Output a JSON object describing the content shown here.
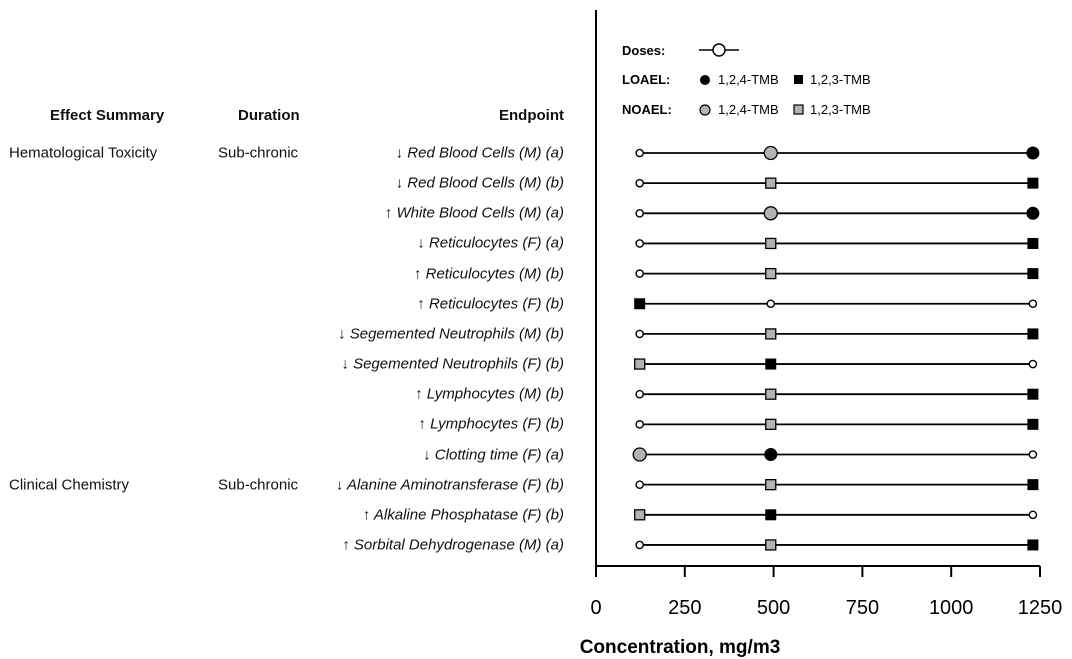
{
  "headers": {
    "effect_summary": "Effect Summary",
    "duration": "Duration",
    "endpoint": "Endpoint"
  },
  "groups": [
    {
      "effect": "Hematological Toxicity",
      "duration": "Sub-chronic",
      "row": 0
    },
    {
      "effect": "Clinical Chemistry",
      "duration": "Sub-chronic",
      "row": 11
    }
  ],
  "legend": {
    "doses_label": "Doses:",
    "loael_label": "LOAEL:",
    "noael_label": "NOAEL:",
    "tmb124": "1,2,4-TMB",
    "tmb123": "1,2,3-TMB"
  },
  "colors": {
    "loael": "#000000",
    "noael_fill": "#b3b3b3",
    "dose_fill": "#ffffff",
    "line": "#000000"
  },
  "chart_data": {
    "type": "scatter",
    "xlabel": "Concentration, mg/m3",
    "xlim": [
      0,
      1250
    ],
    "xticks": [
      0,
      250,
      500,
      750,
      1000,
      1250
    ],
    "xtick_labels": [
      "0",
      "250",
      "500",
      "750",
      "1000",
      "1250"
    ],
    "doses": [
      123,
      492,
      1230
    ],
    "rows": [
      {
        "endpoint": "↓ Red Blood Cells (M) (a)",
        "chemical": "1,2,4-TMB",
        "noael": 492,
        "loael": 1230
      },
      {
        "endpoint": "↓ Red Blood Cells (M) (b)",
        "chemical": "1,2,3-TMB",
        "noael": 492,
        "loael": 1230
      },
      {
        "endpoint": "↑ White Blood Cells (M) (a)",
        "chemical": "1,2,4-TMB",
        "noael": 492,
        "loael": 1230
      },
      {
        "endpoint": "↓ Reticulocytes (F) (a)",
        "chemical": "1,2,3-TMB",
        "noael": 492,
        "loael": 1230
      },
      {
        "endpoint": "↑ Reticulocytes (M) (b)",
        "chemical": "1,2,3-TMB",
        "noael": 492,
        "loael": 1230
      },
      {
        "endpoint": "↑ Reticulocytes (F) (b)",
        "chemical": "1,2,3-TMB",
        "noael": null,
        "loael": 123
      },
      {
        "endpoint": "↓ Segemented Neutrophils (M) (b)",
        "chemical": "1,2,3-TMB",
        "noael": 492,
        "loael": 1230
      },
      {
        "endpoint": "↓ Segemented Neutrophils (F) (b)",
        "chemical": "1,2,3-TMB",
        "noael": 123,
        "loael": 492
      },
      {
        "endpoint": "↑ Lymphocytes (M) (b)",
        "chemical": "1,2,3-TMB",
        "noael": 492,
        "loael": 1230
      },
      {
        "endpoint": "↑ Lymphocytes (F) (b)",
        "chemical": "1,2,3-TMB",
        "noael": 492,
        "loael": 1230
      },
      {
        "endpoint": "↓ Clotting time (F) (a)",
        "chemical": "1,2,4-TMB",
        "noael": 123,
        "loael": 492
      },
      {
        "endpoint": "↓ Alanine Aminotransferase (F) (b)",
        "chemical": "1,2,3-TMB",
        "noael": 492,
        "loael": 1230
      },
      {
        "endpoint": "↑ Alkaline Phosphatase (F) (b)",
        "chemical": "1,2,3-TMB",
        "noael": 123,
        "loael": 492
      },
      {
        "endpoint": "↑ Sorbital Dehydrogenase (M) (a)",
        "chemical": "1,2,3-TMB",
        "noael": 492,
        "loael": 1230
      }
    ]
  }
}
